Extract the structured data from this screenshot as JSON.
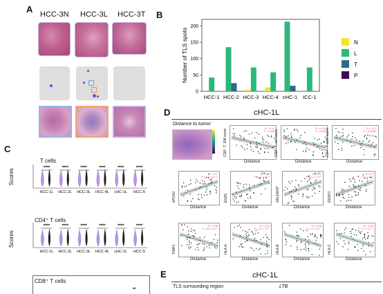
{
  "panels": {
    "a": "A",
    "b": "B",
    "c": "C",
    "d": "D",
    "e": "E"
  },
  "panel_a": {
    "headers": [
      "HCC-3N",
      "HCC-3L",
      "HCC-3T"
    ]
  },
  "chart_data": [
    {
      "type": "bar",
      "categories": [
        "HCC-1",
        "HCC-2",
        "HCC-3",
        "HCC-4",
        "cHC-1",
        "ICC-1"
      ],
      "series": [
        {
          "name": "N",
          "values": [
            0,
            0,
            5,
            12,
            0,
            0
          ]
        },
        {
          "name": "L",
          "values": [
            42,
            135,
            73,
            58,
            213,
            73
          ]
        },
        {
          "name": "T",
          "values": [
            0,
            25,
            0,
            0,
            17,
            0
          ]
        },
        {
          "name": "P",
          "values": [
            0,
            0,
            0,
            0,
            0,
            0
          ]
        }
      ],
      "ylabel": "Number of TLS spots",
      "ylim": [
        0,
        220
      ],
      "yticks": [
        0,
        50,
        100,
        150,
        200
      ],
      "legend": "right"
    }
  ],
  "colors": {
    "N": "#f7e12e",
    "L": "#2db87a",
    "T": "#2f6a87",
    "P": "#3d0a4d",
    "sig_line": "#111111",
    "stat_text": "#e0524b",
    "reg_line": "#e0524b",
    "ci": "#9fd8cf"
  },
  "panel_c": {
    "groups": [
      {
        "title": "T cells",
        "ylabel": "Scores",
        "categories": [
          "HCC-1L",
          "HCC-2L",
          "HCC-3L",
          "HCC-4L",
          "cHC-1L",
          "HCC-5"
        ],
        "sig": [
          "****",
          "****",
          "****",
          "****",
          "****",
          "****"
        ]
      },
      {
        "title": "CD4⁺ T cells",
        "ylabel": "Scores",
        "categories": [
          "HCC-1L",
          "HCC-2L",
          "HCC-3L",
          "HCC-4L",
          "cHC-1L",
          "HCC-5"
        ],
        "sig": [
          "****",
          "****",
          "****",
          "****",
          "****",
          "****"
        ]
      },
      {
        "title": "CD8⁺ T cells",
        "sig": [
          "**"
        ]
      }
    ]
  },
  "panel_d": {
    "title": "cHC-1L",
    "inset_label": "Distance to tumor",
    "row1": [
      {
        "ylabel": "CD8⁺ T_RM score",
        "stat": "R = -0.17\nP = 0.028"
      },
      {
        "ylabel": "CD8⁺ T_em score",
        "stat": "R = -0.15\nP = 0.044"
      },
      {
        "ylabel": "CD4⁺ T cells score",
        "stat": "R = -0.27\nP = 0.00031"
      }
    ],
    "row2": [
      {
        "ylabel": "APOA1",
        "stat": "R = 0.47\nP = 2.9 × 10⁻¹³"
      },
      {
        "ylabel": "EGR1",
        "stat": "R = 0.33\nP = 1.1 × 10⁻⁵"
      },
      {
        "ylabel": "SELENOP",
        "stat": "R = 0.32\nP = 1.2 × 10⁻⁵"
      },
      {
        "ylabel": "DUSP1",
        "stat": "R = 0.3\nP = 3.1 × 10⁻⁵"
      }
    ],
    "row3": [
      {
        "ylabel": "TIMP1",
        "stat": "R = -0.38\nP = 6.8 × 10⁻⁸"
      },
      {
        "ylabel": "HLA-A",
        "stat": "R = -0.34\nP = 4.2 × 10⁻⁶"
      },
      {
        "ylabel": "HLA-B",
        "stat": "R = -0.28\nP = 1.4 × 10⁻⁴"
      },
      {
        "ylabel": "HLA-C",
        "stat": "R = -0.28\nP = 2.7 × 10⁻⁴"
      }
    ],
    "xlabel": "Distance"
  },
  "panel_e": {
    "title": "cHC-1L",
    "subtitle": "TLS surrounding region",
    "gene": "LTB"
  }
}
